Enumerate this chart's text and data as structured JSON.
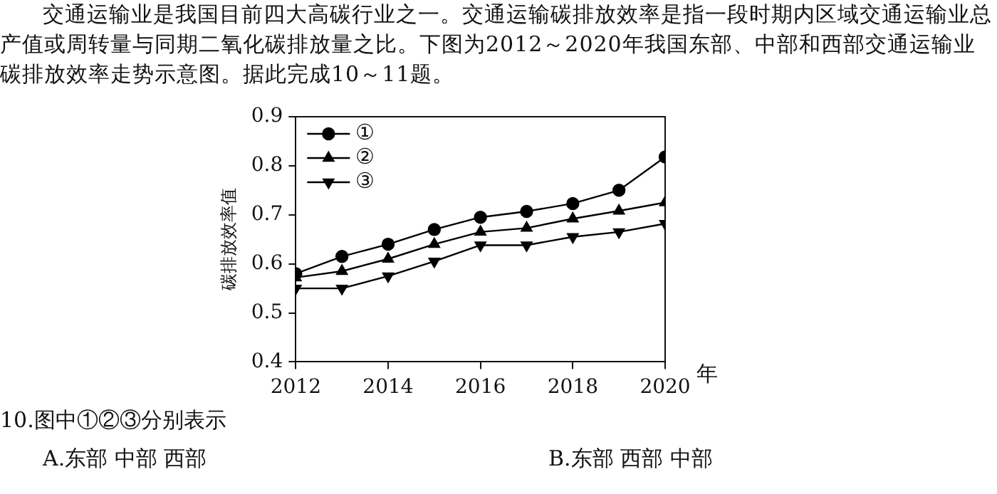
{
  "chart_data": {
    "type": "line",
    "xlabel": "年",
    "ylabel": "碳排放效率值",
    "x": [
      2012,
      2013,
      2014,
      2015,
      2016,
      2017,
      2018,
      2019,
      2020
    ],
    "xlim": [
      2012,
      2020
    ],
    "xticks": [
      2012,
      2014,
      2016,
      2018,
      2020
    ],
    "ylim": [
      0.4,
      0.9
    ],
    "yticks": [
      0.4,
      0.5,
      0.6,
      0.7,
      0.8,
      0.9
    ],
    "grid": false,
    "legend": "top left",
    "line_style": "solid",
    "series": [
      {
        "name": "①",
        "color": "#000000",
        "marker": "circle",
        "values": [
          0.58,
          0.615,
          0.64,
          0.67,
          0.695,
          0.707,
          0.723,
          0.75,
          0.818
        ]
      },
      {
        "name": "②",
        "color": "#000000",
        "marker": "triangle",
        "values": [
          0.572,
          0.585,
          0.61,
          0.64,
          0.665,
          0.673,
          0.692,
          0.708,
          0.725
        ]
      },
      {
        "name": "③",
        "color": "#000000",
        "marker": "triangle-down",
        "values": [
          0.55,
          0.55,
          0.575,
          0.605,
          0.638,
          0.638,
          0.655,
          0.665,
          0.682
        ]
      }
    ],
    "annotations": [
      "交通运输业是我国目前四大高碳行业之一。交通运输碳排放效率是指一段时期内区域交通运输业总产值或周转量与同期二氧化碳排放量之比。下图为2012～2020年我国东部、中部和西部交通运输业碳排放效率走势示意图。据此完成10～11题。",
      "10.图中①②③分别表示",
      "A.东部 中部 西部",
      "B.东部 西部 中部"
    ]
  }
}
